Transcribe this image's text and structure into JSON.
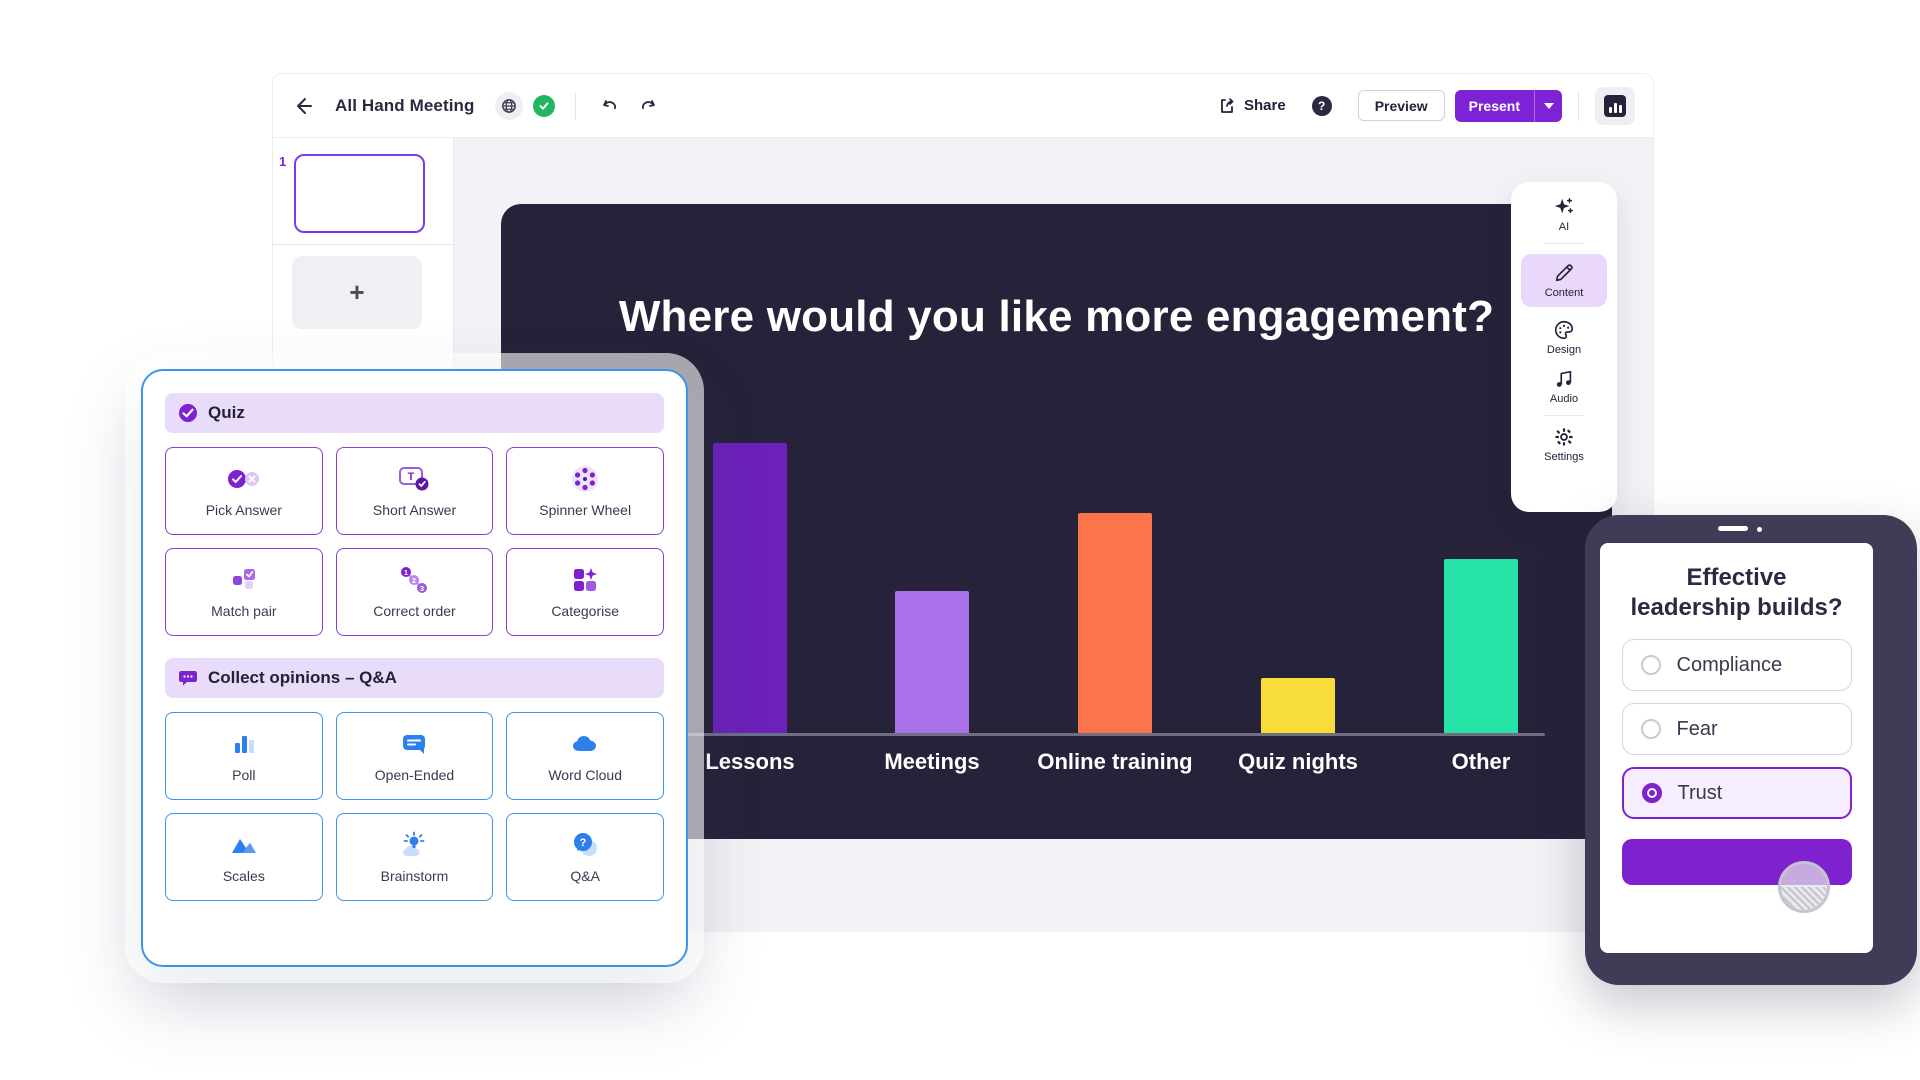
{
  "topbar": {
    "title": "All Hand Meeting",
    "share_label": "Share",
    "help_label": "?",
    "preview_label": "Preview",
    "present_label": "Present"
  },
  "slides_panel": {
    "slide_number": "1",
    "add_label": "+"
  },
  "slide": {
    "title": "Where would you like more engagement?"
  },
  "chart_data": {
    "type": "bar",
    "title": "Where would you like more engagement?",
    "categories": [
      "Lessons",
      "Meetings",
      "Online training",
      "Quiz nights",
      "Other"
    ],
    "values_pct": [
      100,
      49,
      76,
      19,
      60
    ],
    "bar_colors": [
      "#6C21BA",
      "#AA70EA",
      "#FC744B",
      "#F8DC3A",
      "#27E2A6"
    ],
    "xlabel": "",
    "ylabel": "",
    "axis_labels_shown": false,
    "grid": false,
    "legend": "none",
    "background": "#262239",
    "label_color": "#FFFFFF"
  },
  "toolbar_panel": {
    "items": [
      {
        "label": "AI",
        "selected": false
      },
      {
        "label": "Content",
        "selected": true
      },
      {
        "label": "Design",
        "selected": false
      },
      {
        "label": "Audio",
        "selected": false
      },
      {
        "label": "Settings",
        "selected": false
      }
    ]
  },
  "popup": {
    "sections": [
      {
        "title": "Quiz",
        "accent": "#8B3DD9",
        "items": [
          {
            "label": "Pick Answer"
          },
          {
            "label": "Short Answer"
          },
          {
            "label": "Spinner Wheel"
          },
          {
            "label": "Match pair"
          },
          {
            "label": "Correct order"
          },
          {
            "label": "Categorise"
          }
        ]
      },
      {
        "title": "Collect opinions – Q&A",
        "accent": "#3B96EA",
        "items": [
          {
            "label": "Poll"
          },
          {
            "label": "Open-Ended"
          },
          {
            "label": "Word Cloud"
          },
          {
            "label": "Scales"
          },
          {
            "label": "Brainstorm"
          },
          {
            "label": "Q&A"
          }
        ]
      }
    ]
  },
  "phone": {
    "question": "Effective leadership builds?",
    "options": [
      {
        "label": "Compliance",
        "selected": false
      },
      {
        "label": "Fear",
        "selected": false
      },
      {
        "label": "Trust",
        "selected": true
      }
    ]
  },
  "colors": {
    "brand_purple": "#7D22D4",
    "light_purple_header": "#E9DCFB",
    "quiz_border": "#8B3DD9",
    "blue_border": "#3B96EA",
    "blue_icon": "#2E7FEB",
    "canvas_navy": "#262239",
    "green_check": "#21B65F",
    "editor_bg": "#F1F2F5"
  }
}
